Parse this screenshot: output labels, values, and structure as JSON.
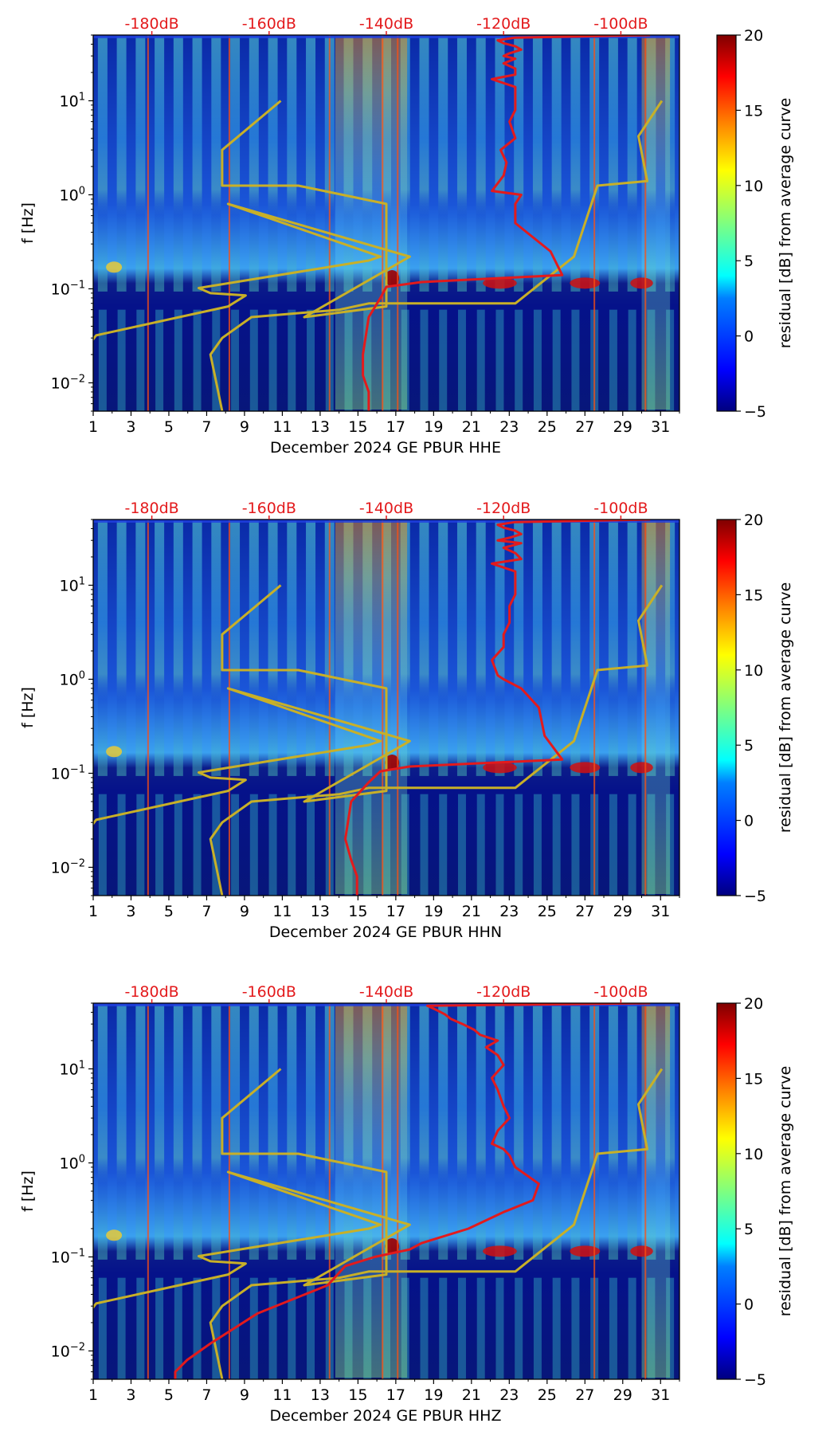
{
  "figure": {
    "channel_label_prefix": "December 2024 GE PBUR",
    "ylabel": "f [Hz]",
    "colorbar_label": "residual [dB] from average curve"
  },
  "colors": {
    "cmap": [
      "#00007f",
      "#0000ff",
      "#007fff",
      "#00ffff",
      "#7fff7f",
      "#ffff00",
      "#ff7f00",
      "#ff0000",
      "#7f0000"
    ],
    "percentile_curve": "#c8b028",
    "mean_curve": "#e31a1c",
    "top_label": "#e31a1c"
  },
  "chart_data": [
    {
      "type": "heatmap",
      "title": "",
      "xlabel": "December 2024 GE PBUR  HHE",
      "ylabel": "f [Hz]",
      "x_ticks": [
        "1",
        "3",
        "5",
        "7",
        "9",
        "11",
        "13",
        "15",
        "17",
        "19",
        "21",
        "23",
        "25",
        "27",
        "29",
        "31"
      ],
      "xlim": [
        1,
        32
      ],
      "y_scale": "log",
      "ylim": [
        0.005,
        50
      ],
      "y_tick_labels": [
        "10^-2",
        "10^-1",
        "10^0",
        "10^1"
      ],
      "top_axis_labels": [
        "-180dB",
        "-160dB",
        "-140dB",
        "-120dB",
        "-100dB"
      ],
      "top_axis_range_db": [
        -190,
        -90
      ],
      "colorbar": {
        "min": -5,
        "max": 20,
        "ticks": [
          "−5",
          "0",
          "5",
          "10",
          "15",
          "20"
        ],
        "label": "residual [dB] from average curve"
      },
      "series": [
        {
          "name": "gold percentile curve",
          "db": [
            -190.5,
            -190.5,
            -191,
            -191.5,
            -189.5,
            -167,
            -164,
            -170,
            -172,
            -143,
            -141,
            -167,
            -136,
            -154,
            -140,
            -140,
            -155,
            -166,
            -168,
            -168,
            -158
          ],
          "freq": [
            0.005,
            0.008,
            0.014,
            0.022,
            0.032,
            0.065,
            0.085,
            0.09,
            0.102,
            0.2,
            0.22,
            0.8,
            0.22,
            0.05,
            0.065,
            0.8,
            1.25,
            1.25,
            1.25,
            3,
            10
          ]
        },
        {
          "name": "gold percentile curve (upper)",
          "db": [
            -168,
            -169,
            -170,
            -168,
            -163,
            -148,
            -143,
            -118,
            -108,
            -104,
            -95.5,
            -97,
            -93
          ],
          "freq": [
            0.005,
            0.01,
            0.02,
            0.03,
            0.05,
            0.06,
            0.07,
            0.07,
            0.22,
            1.25,
            1.4,
            4.2,
            10
          ]
        },
        {
          "name": "red mean curve",
          "db": [
            -143,
            -143,
            -144,
            -144,
            -143,
            -141,
            -140,
            -134,
            -110,
            -112,
            -118,
            -118,
            -117,
            -122,
            -120,
            -119.5,
            -120.5,
            -118,
            -119,
            -118,
            -118,
            -118,
            -122,
            -118,
            -118,
            -120,
            -118,
            -120,
            -119,
            -117,
            -118,
            -120,
            -121,
            -118,
            -95
          ],
          "freq": [
            0.005,
            0.008,
            0.012,
            0.02,
            0.05,
            0.08,
            0.105,
            0.118,
            0.14,
            0.25,
            0.5,
            0.8,
            1.0,
            1.1,
            1.6,
            2.2,
            3.0,
            4.0,
            6.0,
            8.0,
            11,
            14,
            17,
            19,
            22,
            25,
            28,
            30,
            32,
            35,
            38,
            41,
            44,
            47,
            50
          ]
        }
      ]
    },
    {
      "type": "heatmap",
      "title": "",
      "xlabel": "December 2024 GE PBUR  HHN",
      "ylabel": "f [Hz]",
      "x_ticks": [
        "1",
        "3",
        "5",
        "7",
        "9",
        "11",
        "13",
        "15",
        "17",
        "19",
        "21",
        "23",
        "25",
        "27",
        "29",
        "31"
      ],
      "xlim": [
        1,
        32
      ],
      "y_scale": "log",
      "ylim": [
        0.005,
        50
      ],
      "y_tick_labels": [
        "10^-2",
        "10^-1",
        "10^0",
        "10^1"
      ],
      "top_axis_labels": [
        "-180dB",
        "-160dB",
        "-140dB",
        "-120dB",
        "-100dB"
      ],
      "top_axis_range_db": [
        -190,
        -90
      ],
      "colorbar": {
        "min": -5,
        "max": 20,
        "ticks": [
          "−5",
          "0",
          "5",
          "10",
          "15",
          "20"
        ],
        "label": "residual [dB] from average curve"
      },
      "series": [
        {
          "name": "gold percentile curve",
          "db": [
            -190.5,
            -190.5,
            -191,
            -191.5,
            -189.5,
            -167,
            -164,
            -170,
            -172,
            -143,
            -141,
            -167,
            -136,
            -154,
            -140,
            -140,
            -155,
            -166,
            -168,
            -168,
            -158
          ],
          "freq": [
            0.005,
            0.008,
            0.014,
            0.022,
            0.032,
            0.065,
            0.085,
            0.09,
            0.102,
            0.2,
            0.22,
            0.8,
            0.22,
            0.05,
            0.065,
            0.8,
            1.25,
            1.25,
            1.25,
            3,
            10
          ]
        },
        {
          "name": "gold percentile curve (upper)",
          "db": [
            -168,
            -169,
            -170,
            -168,
            -163,
            -148,
            -143,
            -118,
            -108,
            -104,
            -95.5,
            -97,
            -93
          ],
          "freq": [
            0.005,
            0.01,
            0.02,
            0.03,
            0.05,
            0.06,
            0.07,
            0.07,
            0.22,
            1.25,
            1.4,
            4.2,
            10
          ]
        },
        {
          "name": "red mean curve",
          "db": [
            -145,
            -145,
            -146,
            -147,
            -146,
            -143,
            -141,
            -136,
            -110,
            -113,
            -114,
            -117,
            -120,
            -121,
            -122,
            -120,
            -120,
            -119,
            -119,
            -118,
            -118,
            -118,
            -122,
            -117,
            -118,
            -120,
            -117,
            -121,
            -119,
            -117,
            -118,
            -120,
            -121,
            -118,
            -95
          ],
          "freq": [
            0.005,
            0.008,
            0.012,
            0.02,
            0.05,
            0.08,
            0.105,
            0.118,
            0.14,
            0.25,
            0.5,
            0.8,
            1.0,
            1.1,
            1.6,
            2.2,
            3.0,
            4.0,
            6.0,
            8.0,
            11,
            14,
            17,
            19,
            22,
            25,
            28,
            30,
            32,
            35,
            38,
            41,
            44,
            47,
            50
          ]
        }
      ]
    },
    {
      "type": "heatmap",
      "title": "",
      "xlabel": "December 2024 GE PBUR  HHZ",
      "ylabel": "f [Hz]",
      "x_ticks": [
        "1",
        "3",
        "5",
        "7",
        "9",
        "11",
        "13",
        "15",
        "17",
        "19",
        "21",
        "23",
        "25",
        "27",
        "29",
        "31"
      ],
      "xlim": [
        1,
        32
      ],
      "y_scale": "log",
      "ylim": [
        0.005,
        50
      ],
      "y_tick_labels": [
        "10^-2",
        "10^-1",
        "10^0",
        "10^1"
      ],
      "top_axis_labels": [
        "-180dB",
        "-160dB",
        "-140dB",
        "-120dB",
        "-100dB"
      ],
      "top_axis_range_db": [
        -190,
        -90
      ],
      "colorbar": {
        "min": -5,
        "max": 20,
        "ticks": [
          "−5",
          "0",
          "5",
          "10",
          "15",
          "20"
        ],
        "label": "residual [dB] from average curve"
      },
      "series": [
        {
          "name": "gold percentile curve",
          "db": [
            -190.5,
            -190.5,
            -191,
            -191.5,
            -189.5,
            -167,
            -164,
            -170,
            -172,
            -143,
            -141,
            -167,
            -136,
            -154,
            -140,
            -140,
            -155,
            -166,
            -168,
            -168,
            -158
          ],
          "freq": [
            0.005,
            0.008,
            0.014,
            0.022,
            0.032,
            0.065,
            0.085,
            0.09,
            0.102,
            0.2,
            0.22,
            0.8,
            0.22,
            0.05,
            0.065,
            0.8,
            1.25,
            1.25,
            1.25,
            3,
            10
          ]
        },
        {
          "name": "gold percentile curve (upper)",
          "db": [
            -168,
            -169,
            -170,
            -168,
            -163,
            -148,
            -143,
            -118,
            -108,
            -104,
            -95.5,
            -97,
            -93
          ],
          "freq": [
            0.005,
            0.01,
            0.02,
            0.03,
            0.05,
            0.06,
            0.07,
            0.07,
            0.22,
            1.25,
            1.4,
            4.2,
            10
          ]
        },
        {
          "name": "red mean curve",
          "db": [
            -176,
            -176,
            -174,
            -170,
            -162,
            -150,
            -147,
            -142,
            -136,
            -134,
            -126,
            -120,
            -115,
            -114,
            -118,
            -119,
            -120,
            -122,
            -121,
            -119,
            -120,
            -121,
            -122,
            -120,
            -121,
            -123,
            -121,
            -124,
            -125,
            -127,
            -129,
            -130,
            -131,
            -132,
            -133,
            -95
          ],
          "freq": [
            0.005,
            0.006,
            0.008,
            0.012,
            0.025,
            0.05,
            0.08,
            0.1,
            0.12,
            0.14,
            0.2,
            0.3,
            0.4,
            0.6,
            0.9,
            1.2,
            1.4,
            1.6,
            2.2,
            3,
            4,
            6,
            8,
            11,
            14,
            17,
            20,
            23,
            26,
            30,
            34,
            38,
            41,
            44,
            47,
            50
          ]
        }
      ]
    }
  ]
}
